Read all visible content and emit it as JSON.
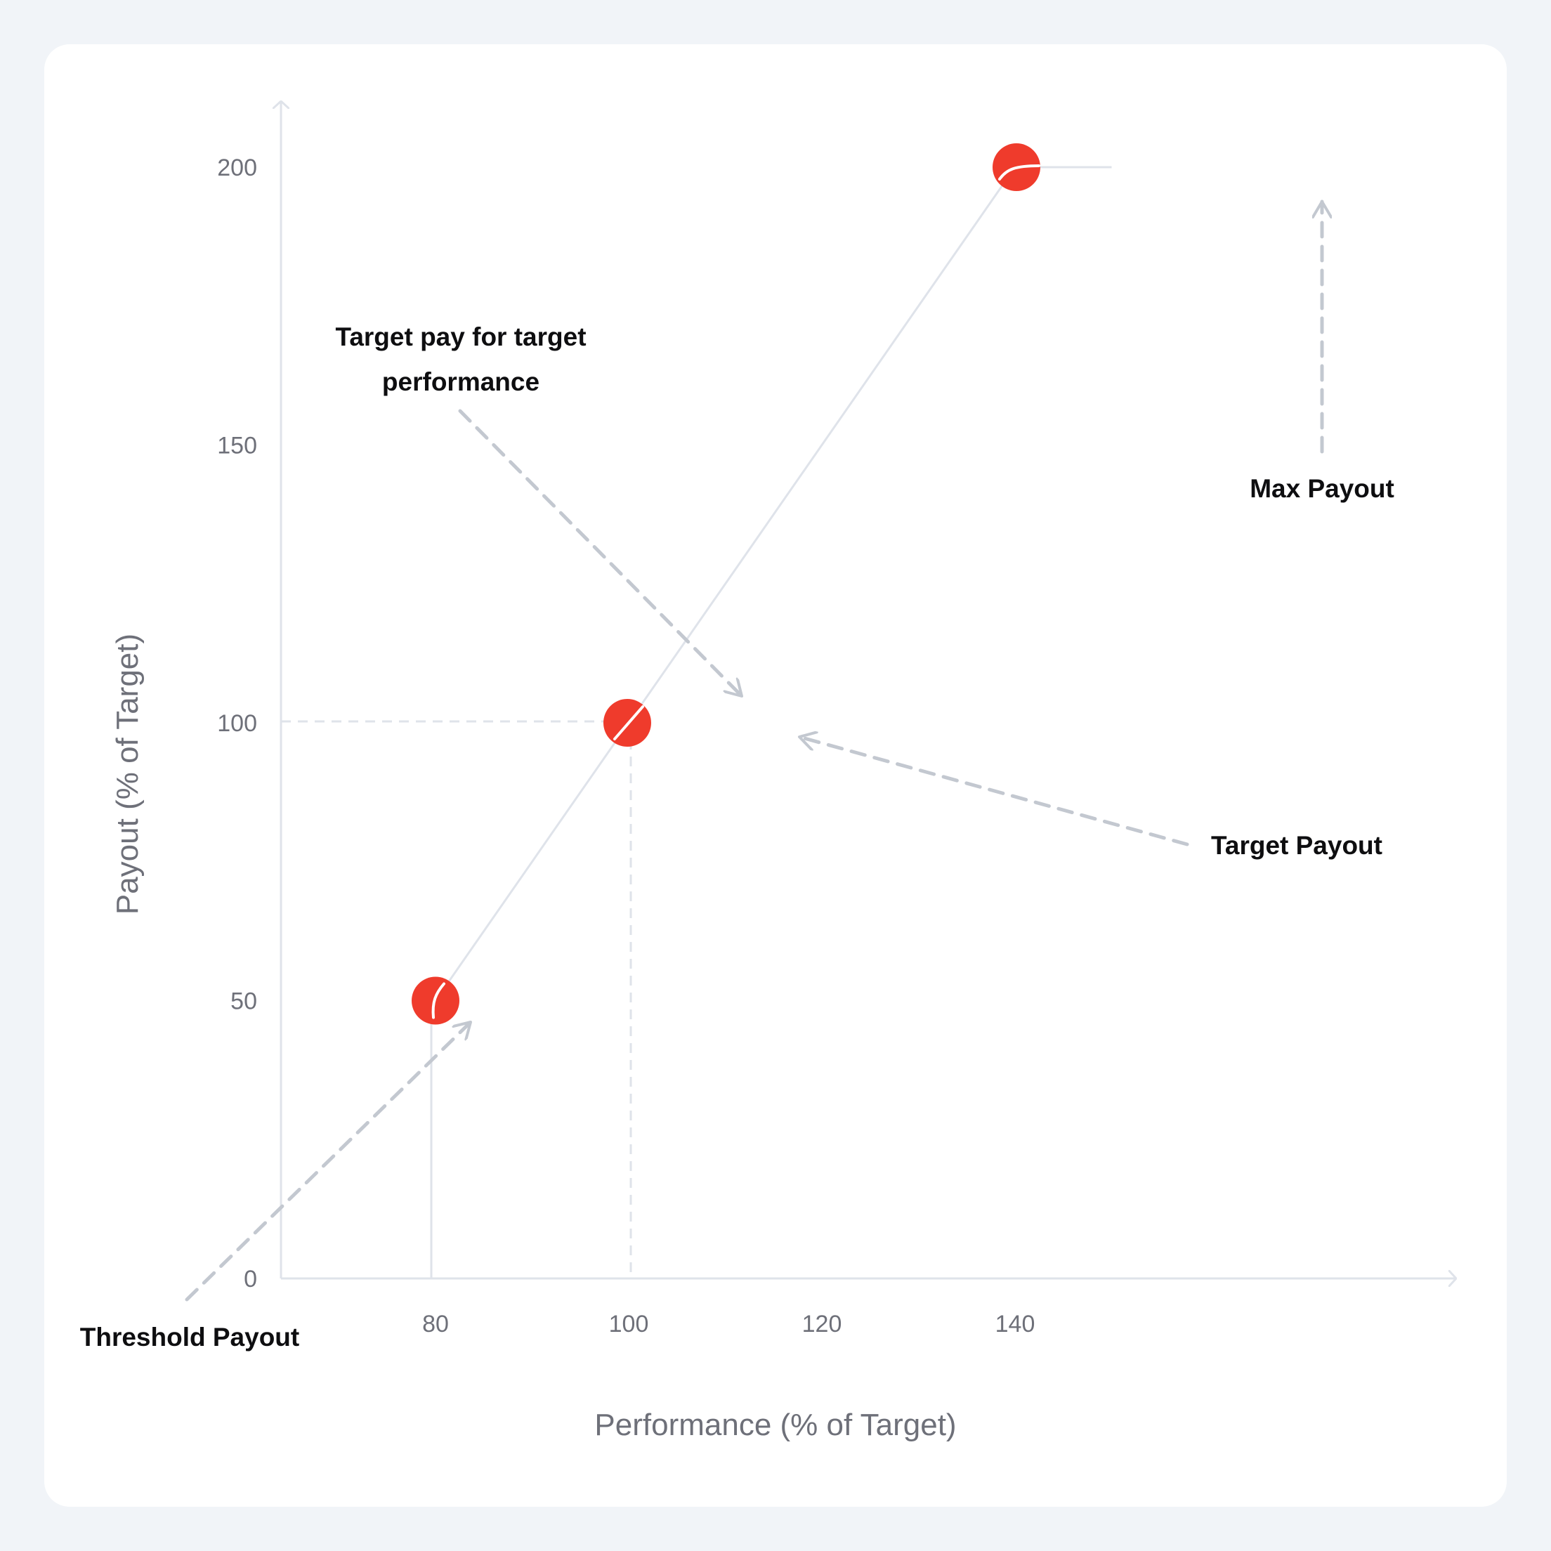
{
  "chart_data": {
    "type": "line",
    "xlabel": "Performance (% of Target)",
    "ylabel": "Payout (% of Target)",
    "xlim": [
      64,
      150
    ],
    "ylim": [
      0,
      212
    ],
    "x_ticks": [
      80,
      100,
      120,
      140
    ],
    "y_ticks": [
      0,
      50,
      100,
      150,
      200
    ],
    "series": [
      {
        "x": [
          80,
          100,
          140,
          150
        ],
        "y": [
          50,
          100,
          200,
          200
        ]
      }
    ],
    "points": [
      {
        "x": 80,
        "y": 50
      },
      {
        "x": 100,
        "y": 100
      },
      {
        "x": 140,
        "y": 200
      }
    ],
    "annotations": [
      {
        "lines": [
          "Threshold Payout"
        ],
        "points_to": {
          "x": 80,
          "y": 50
        }
      },
      {
        "lines": [
          "Target pay for target",
          "performance"
        ],
        "points_to": {
          "x": 100,
          "y": 100
        }
      },
      {
        "lines": [
          "Target Payout"
        ],
        "points_to": {
          "x": 100,
          "y": 100
        }
      },
      {
        "lines": [
          "Max Payout"
        ],
        "points_to": {
          "x": 140,
          "y": 200
        }
      }
    ],
    "grid": false,
    "colors": {
      "marker": "#ef3b2c",
      "line": "#dfe3ea",
      "axis": "#dfe3ea",
      "arrow": "#c3c8d0"
    }
  }
}
